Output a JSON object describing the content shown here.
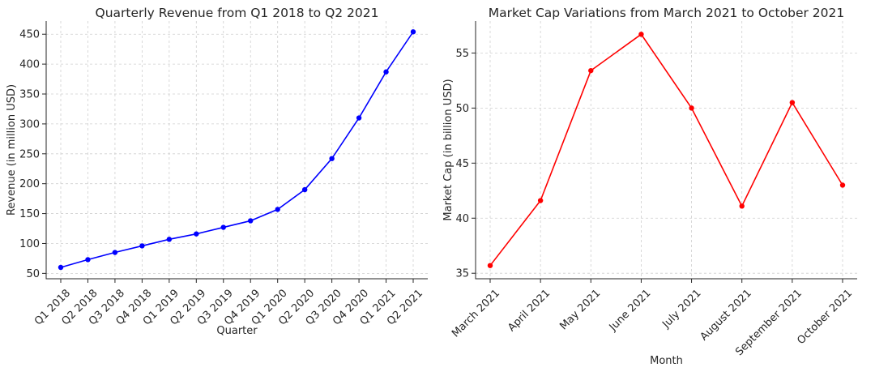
{
  "chart_data": [
    {
      "type": "line",
      "title": "Quarterly Revenue from Q1 2018 to Q2 2021",
      "xlabel": "Quarter",
      "ylabel": "Revenue (in million USD)",
      "categories": [
        "Q1 2018",
        "Q2 2018",
        "Q3 2018",
        "Q4 2018",
        "Q1 2019",
        "Q2 2019",
        "Q3 2019",
        "Q4 2019",
        "Q1 2020",
        "Q2 2020",
        "Q3 2020",
        "Q4 2020",
        "Q1 2021",
        "Q2 2021"
      ],
      "series": [
        {
          "values": [
            60,
            73,
            85,
            96,
            107,
            116,
            127,
            138,
            157,
            190,
            242,
            310,
            387,
            454
          ],
          "color": "#0000ff"
        }
      ],
      "ylim": [
        41,
        472
      ],
      "yticks": [
        50,
        100,
        150,
        200,
        250,
        300,
        350,
        400,
        450
      ],
      "grid": true
    },
    {
      "type": "line",
      "title": "Market Cap Variations from March 2021 to October 2021",
      "xlabel": "Month",
      "ylabel": "Market Cap (in billion USD)",
      "categories": [
        "March 2021",
        "April 2021",
        "May 2021",
        "June 2021",
        "July 2021",
        "August 2021",
        "September 2021",
        "October 2021"
      ],
      "series": [
        {
          "values": [
            35.7,
            41.6,
            53.4,
            56.7,
            50.0,
            41.1,
            50.5,
            43.0
          ],
          "color": "#ff0000"
        }
      ],
      "ylim": [
        34.5,
        57.9
      ],
      "yticks": [
        35,
        40,
        45,
        50,
        55
      ],
      "grid": true
    }
  ]
}
